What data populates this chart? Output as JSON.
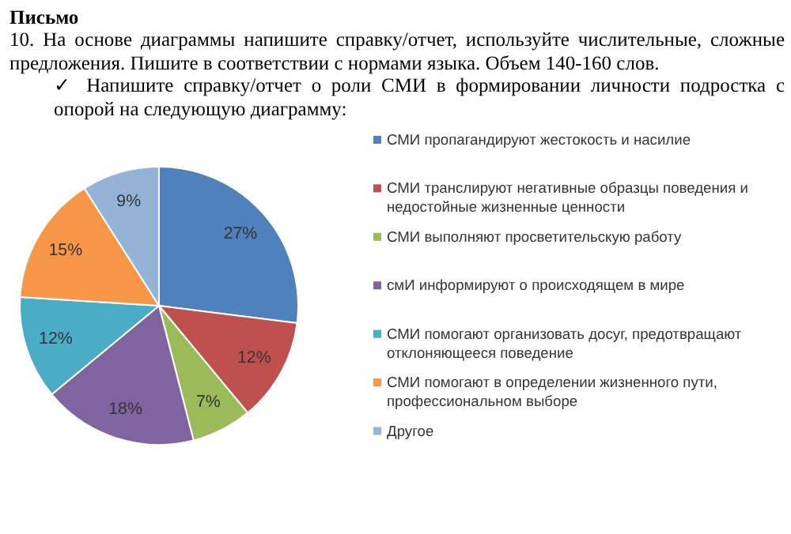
{
  "chart_data": {
    "type": "pie",
    "title": "Письмо",
    "subtitle": "10. На основе диаграммы напишите справку/отчет, используйте числительные, сложные предложения. Пишите в соответствии с нормами языка. Объем 140-160 слов.",
    "annotations": [
      "✓ Напишите справку/отчет о роли СМИ в формировании личности подростка с опорой на следующую диаграмму:"
    ],
    "categories": [
      "СМИ пропагандируют жестокость и насилие",
      "СМИ транслируют негативные образцы поведения и недостойные жизненные ценности",
      "СМИ выполняют просветительскую работу",
      "смИ информируют о происходящем в мире",
      "СМИ помогают организовать досуг, предотвращают отклоняющееся поведение",
      "СМИ помогают в определении жизненного пути, профессиональном выборе",
      "Другое"
    ],
    "values": [
      27,
      12,
      7,
      18,
      12,
      15,
      9
    ],
    "value_labels": [
      "27%",
      "12%",
      "7%",
      "18%",
      "12%",
      "15%",
      "9%"
    ],
    "colors": [
      "#4f81bd",
      "#c0504d",
      "#9bbb59",
      "#8064a2",
      "#4bacc6",
      "#f79646",
      "#95b3d7"
    ],
    "legend": "right"
  }
}
